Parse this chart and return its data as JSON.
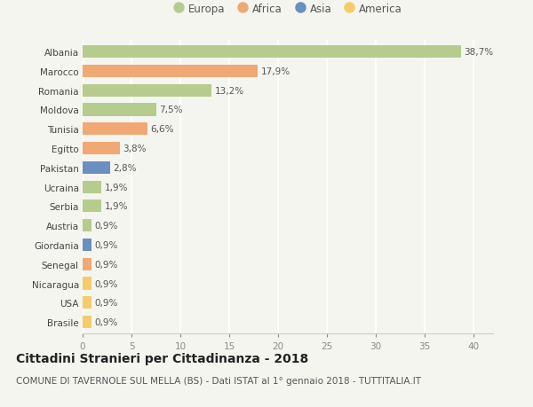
{
  "countries": [
    "Albania",
    "Marocco",
    "Romania",
    "Moldova",
    "Tunisia",
    "Egitto",
    "Pakistan",
    "Ucraina",
    "Serbia",
    "Austria",
    "Giordania",
    "Senegal",
    "Nicaragua",
    "USA",
    "Brasile"
  ],
  "values": [
    38.7,
    17.9,
    13.2,
    7.5,
    6.6,
    3.8,
    2.8,
    1.9,
    1.9,
    0.9,
    0.9,
    0.9,
    0.9,
    0.9,
    0.9
  ],
  "labels": [
    "38,7%",
    "17,9%",
    "13,2%",
    "7,5%",
    "6,6%",
    "3,8%",
    "2,8%",
    "1,9%",
    "1,9%",
    "0,9%",
    "0,9%",
    "0,9%",
    "0,9%",
    "0,9%",
    "0,9%"
  ],
  "continents": [
    "Europa",
    "Africa",
    "Europa",
    "Europa",
    "Africa",
    "Africa",
    "Asia",
    "Europa",
    "Europa",
    "Europa",
    "Asia",
    "Africa",
    "America",
    "America",
    "America"
  ],
  "continent_colors": {
    "Europa": "#b5cc8e",
    "Africa": "#f0a875",
    "Asia": "#6b8fbf",
    "America": "#f5cc6a"
  },
  "legend_order": [
    "Europa",
    "Africa",
    "Asia",
    "America"
  ],
  "xlim": [
    0,
    42
  ],
  "xticks": [
    0,
    5,
    10,
    15,
    20,
    25,
    30,
    35,
    40
  ],
  "title": "Cittadini Stranieri per Cittadinanza - 2018",
  "subtitle": "COMUNE DI TAVERNOLE SUL MELLA (BS) - Dati ISTAT al 1° gennaio 2018 - TUTTITALIA.IT",
  "bg_color": "#f5f5f0",
  "grid_color": "#ffffff",
  "bar_height": 0.65,
  "label_fontsize": 7.5,
  "title_fontsize": 10,
  "subtitle_fontsize": 7.5,
  "tick_fontsize": 7.5,
  "legend_fontsize": 8.5
}
